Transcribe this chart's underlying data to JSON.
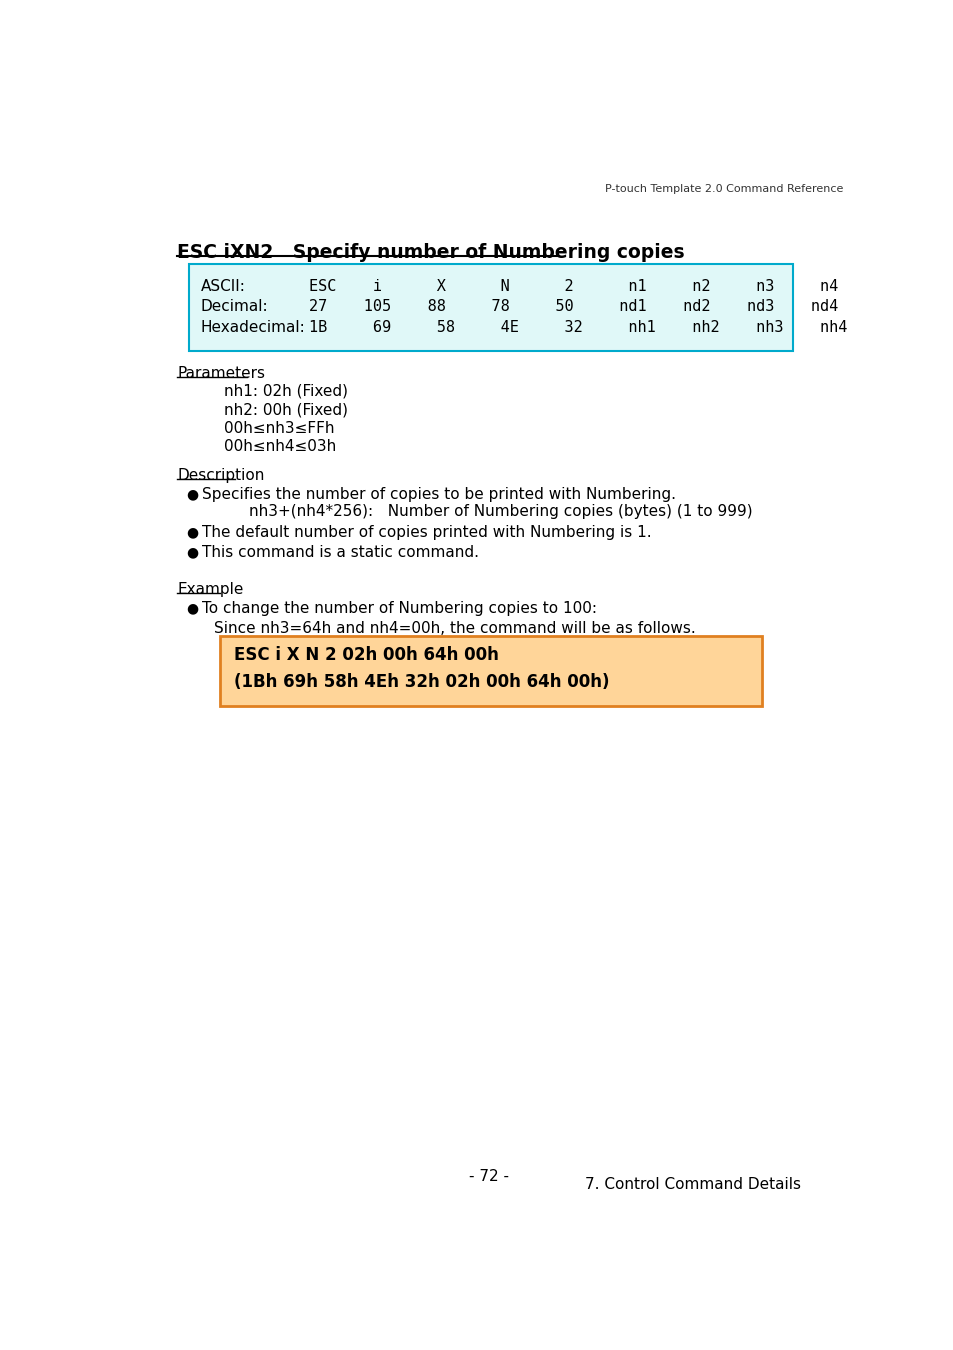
{
  "header_text": "P-touch Template 2.0 Command Reference",
  "title": "ESC iXN2   Specify number of Numbering copies",
  "cyan_box_bg": "#e0f8f8",
  "cyan_box_border": "#00aacc",
  "ascii_label": "ASCII:",
  "ascii_values": "ESC    i      X      N      2      n1     n2     n3     n4",
  "decimal_label": "Decimal:",
  "decimal_values": "27    105    88     78     50     nd1    nd2    nd3    nd4",
  "hex_label": "Hexadecimal:",
  "hex_values": "1B     69     58     4E     32     nh1    nh2    nh3    nh4",
  "parameters_label": "Parameters",
  "param1": "nh1: 02h (Fixed)",
  "param2": "nh2: 00h (Fixed)",
  "param3": "00h≤nh3≤FFh",
  "param4": "00h≤nh4≤03h",
  "description_label": "Description",
  "bullet1": "Specifies the number of copies to be printed with Numbering.",
  "bullet1_sub": "nh3+(nh4*256):   Number of Numbering copies (bytes) (1 to 999)",
  "bullet2": "The default number of copies printed with Numbering is 1.",
  "bullet3": "This command is a static command.",
  "example_label": "Example",
  "example_bullet": "To change the number of Numbering copies to 100:",
  "example_since": "Since nh3=64h and nh4=00h, the command will be as follows.",
  "orange_box_bg": "#ffd599",
  "orange_box_border": "#e08020",
  "orange_line1": "ESC i X N 2 02h 00h 64h 00h",
  "orange_line2": "(1Bh 69h 58h 4Eh 32h 02h 00h 64h 00h)",
  "footer_page": "- 72 -",
  "footer_chapter": "7. Control Command Details",
  "bg_color": "#ffffff"
}
